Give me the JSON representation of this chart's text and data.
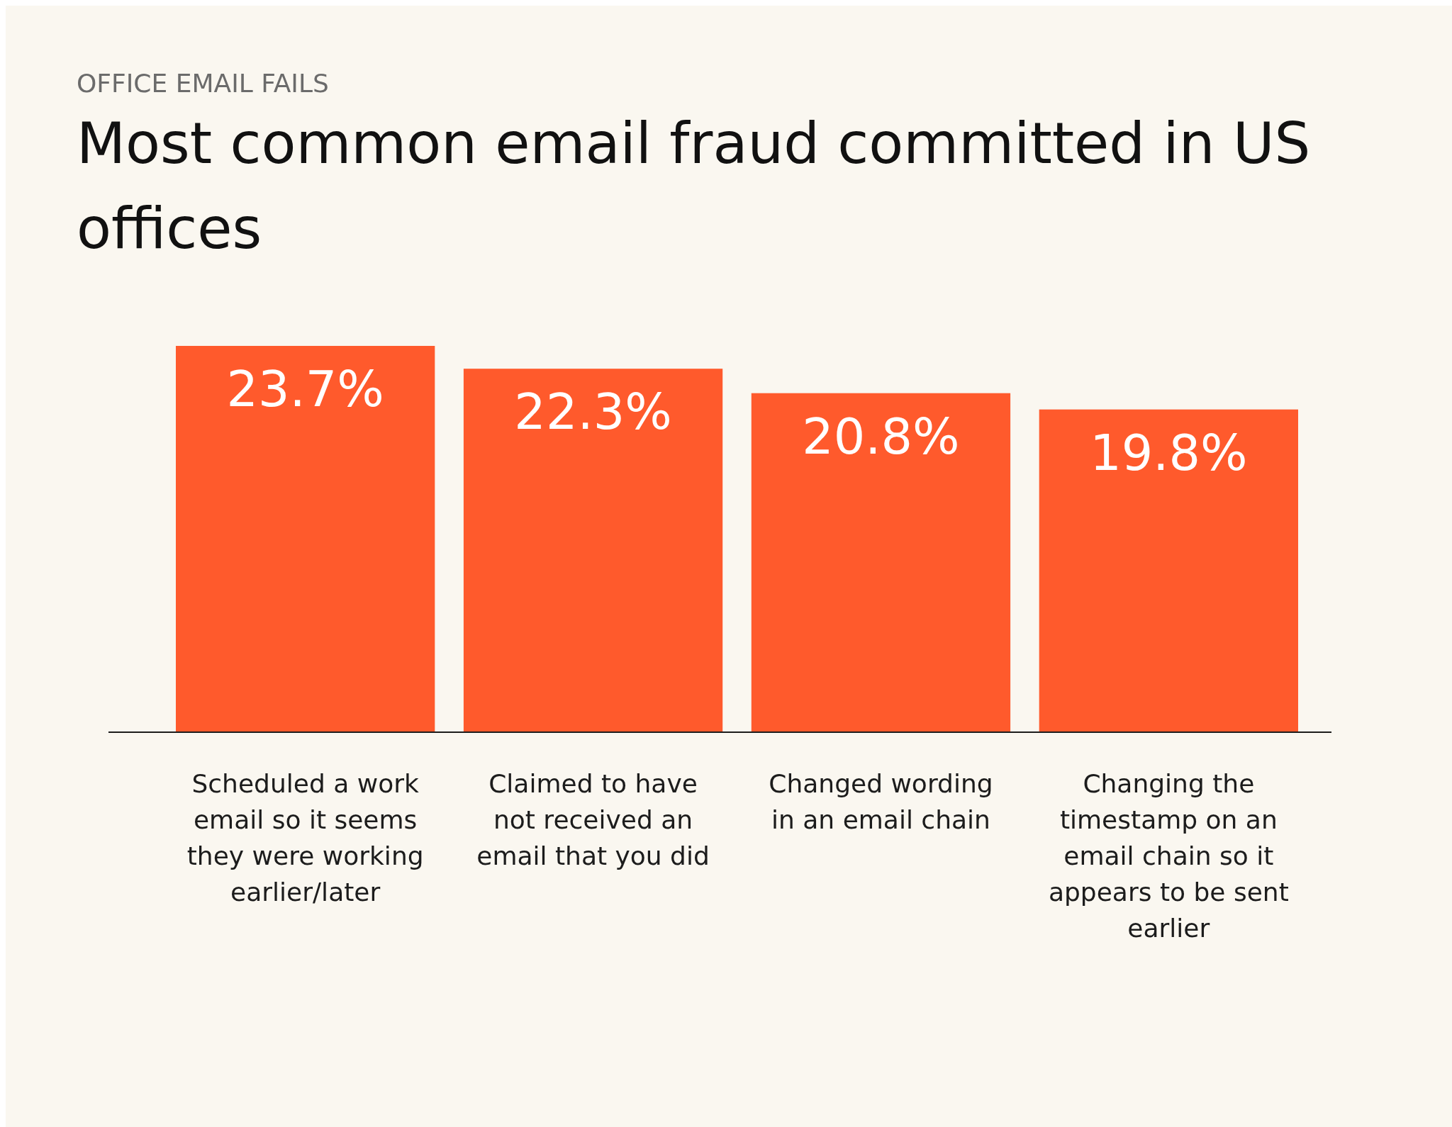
{
  "chart_data": {
    "type": "bar",
    "subtitle": "OFFICE EMAIL FAILS",
    "title": "Most common email fraud committed in US offices",
    "categories": [
      "Scheduled a work email so it seems they were working earlier/later",
      "Claimed to have not received an email that you did",
      "Changed wording in an email chain",
      "Changing the timestamp on an email chain so it appears to be sent earlier"
    ],
    "values": [
      23.7,
      22.3,
      20.8,
      19.8
    ],
    "value_labels": [
      "23.7%",
      "22.3%",
      "20.8%",
      "19.8%"
    ],
    "color": "#ff5a2c"
  }
}
